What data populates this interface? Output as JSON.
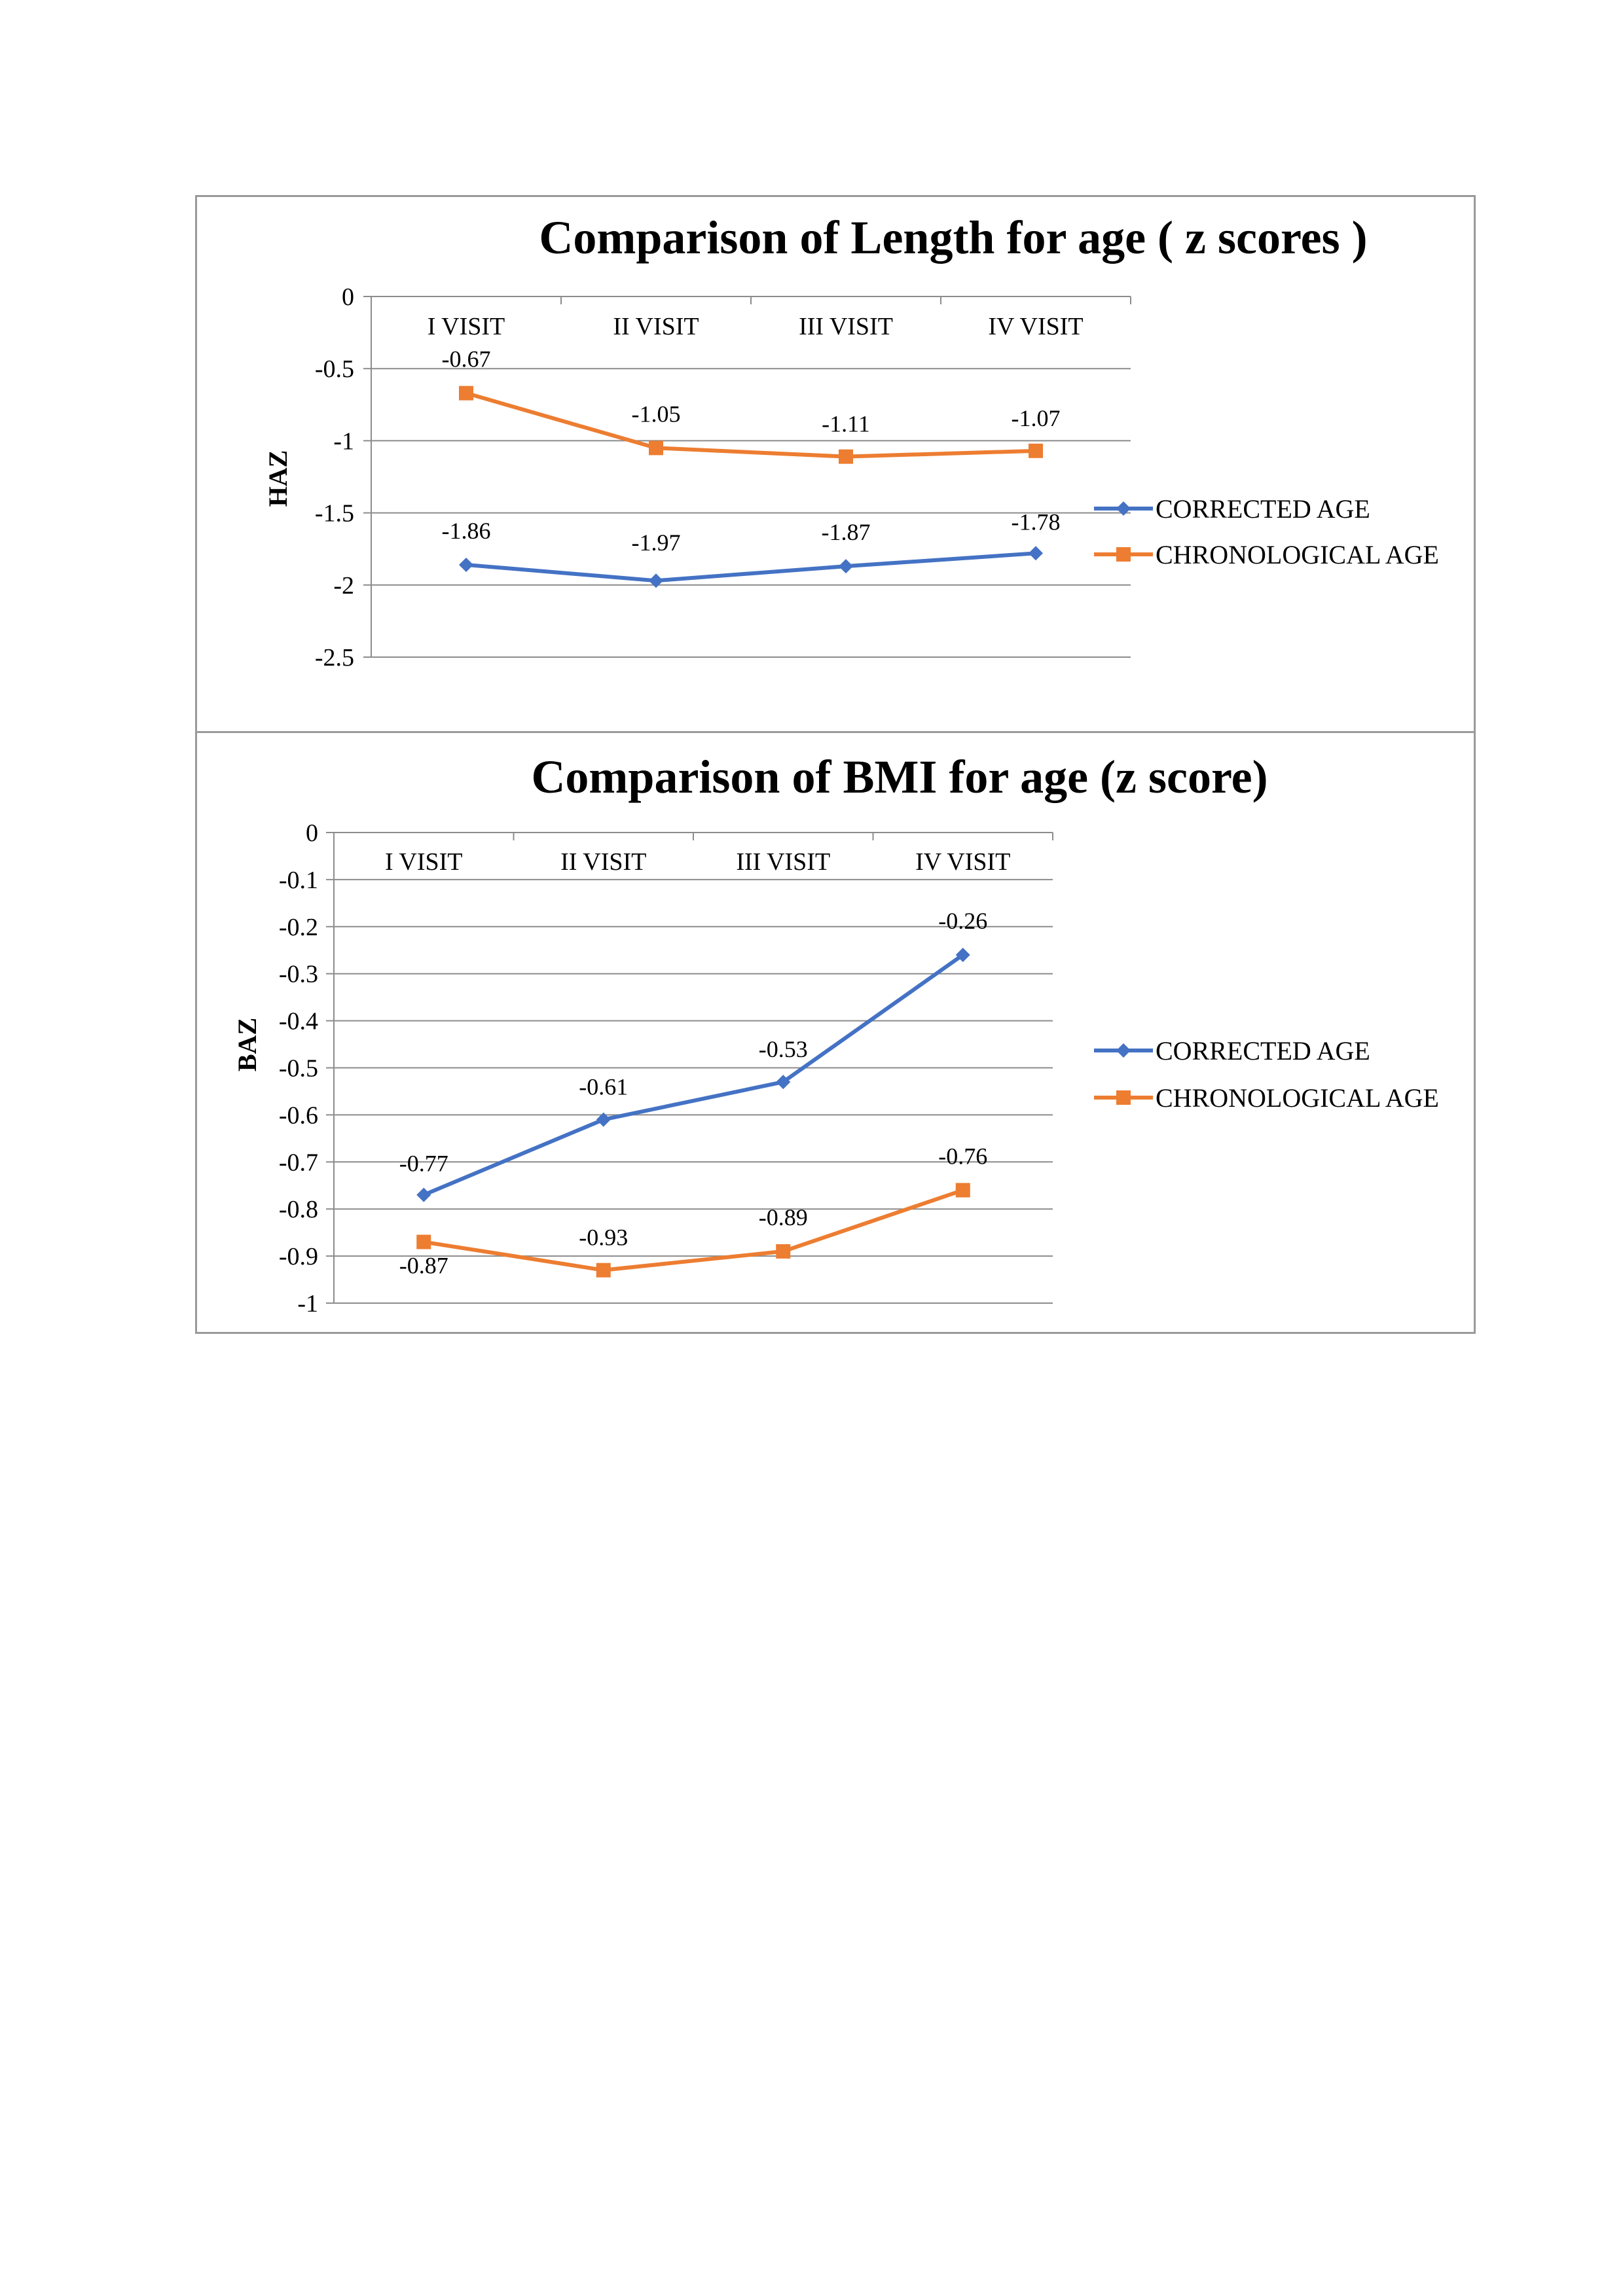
{
  "colors": {
    "corrected": "#4472c4",
    "chronological": "#ed7d31",
    "grid": "#8c8c8c",
    "border": "#9a9a9a"
  },
  "chart_data": [
    {
      "type": "line",
      "title": "Comparison of Length for age ( z scores )",
      "xlabel": "",
      "ylabel": "HAZ",
      "categories": [
        "I VISIT",
        "II VISIT",
        "III VISIT",
        "IV VISIT"
      ],
      "ylim": [
        -2.5,
        0
      ],
      "yticks": [
        0,
        -0.5,
        -1,
        -1.5,
        -2,
        -2.5
      ],
      "ytick_labels": [
        "0",
        "-0.5",
        "-1",
        "-1.5",
        "-2",
        "-2.5"
      ],
      "grid": true,
      "legend_position": "right",
      "series": [
        {
          "name": "CORRECTED AGE",
          "marker": "diamond",
          "color": "#4472c4",
          "values": [
            -1.86,
            -1.97,
            -1.87,
            -1.78
          ],
          "labels": [
            "-1.86",
            "-1.97",
            "-1.87",
            "-1.78"
          ]
        },
        {
          "name": "CHRONOLOGICAL AGE",
          "marker": "square",
          "color": "#ed7d31",
          "values": [
            -0.67,
            -1.05,
            -1.11,
            -1.07
          ],
          "labels": [
            "-0.67",
            "-1.05",
            "-1.11",
            "-1.07"
          ]
        }
      ]
    },
    {
      "type": "line",
      "title": "Comparison of BMI for age (z score)",
      "xlabel": "",
      "ylabel": "BAZ",
      "categories": [
        "I VISIT",
        "II VISIT",
        "III VISIT",
        "IV VISIT"
      ],
      "ylim": [
        -1,
        0
      ],
      "yticks": [
        0,
        -0.1,
        -0.2,
        -0.3,
        -0.4,
        -0.5,
        -0.6,
        -0.7,
        -0.8,
        -0.9,
        -1
      ],
      "ytick_labels": [
        "0",
        "-0.1",
        "-0.2",
        "-0.3",
        "-0.4",
        "-0.5",
        "-0.6",
        "-0.7",
        "-0.8",
        "-0.9",
        "-1"
      ],
      "grid": true,
      "legend_position": "right",
      "series": [
        {
          "name": "CORRECTED AGE",
          "marker": "diamond",
          "color": "#4472c4",
          "values": [
            -0.77,
            -0.61,
            -0.53,
            -0.26
          ],
          "labels": [
            "-0.77",
            "-0.61",
            "-0.53",
            "-0.26"
          ]
        },
        {
          "name": "CHRONOLOGICAL AGE",
          "marker": "square",
          "color": "#ed7d31",
          "values": [
            -0.87,
            -0.93,
            -0.89,
            -0.76
          ],
          "labels": [
            "-0.87",
            "-0.93",
            "-0.89",
            "-0.76"
          ]
        }
      ]
    }
  ]
}
